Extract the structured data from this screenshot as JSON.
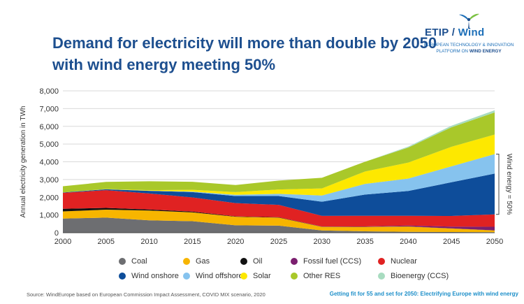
{
  "header": {
    "title": "Demand for electricity will more than double by 2050 with wind energy meeting 50%"
  },
  "logo": {
    "name_part1": "ETIP",
    "name_part2": "Wind",
    "tagline_line1": "European Technology & Innovation",
    "tagline_line2_prefix": "Platform on ",
    "tagline_line2_bold": "Wind Energy",
    "icon": "wind-turbine-icon"
  },
  "chart_data": {
    "type": "area",
    "stacked": true,
    "ylabel": "Annual electricity generation in TWh",
    "xlabel": "",
    "x": [
      2000,
      2005,
      2010,
      2015,
      2020,
      2025,
      2030,
      2035,
      2040,
      2045,
      2050
    ],
    "ylim": [
      0,
      8000
    ],
    "yticks": [
      "0",
      "1,000",
      "2,000",
      "3,000",
      "4,000",
      "5,000",
      "6,000",
      "7,000",
      "8,000"
    ],
    "grid": true,
    "bracket_label": "Wind energy = 50%",
    "series": [
      {
        "name": "Coal",
        "color": "#6d6e71",
        "values": [
          800,
          850,
          700,
          650,
          420,
          400,
          130,
          80,
          50,
          40,
          30
        ]
      },
      {
        "name": "Gas",
        "color": "#f7b500",
        "values": [
          400,
          450,
          550,
          500,
          480,
          450,
          200,
          250,
          300,
          200,
          100
        ]
      },
      {
        "name": "Oil",
        "color": "#111111",
        "values": [
          150,
          100,
          60,
          40,
          20,
          20,
          10,
          5,
          5,
          5,
          5
        ]
      },
      {
        "name": "Fossil fuel (CCS)",
        "color": "#7b1f6f",
        "values": [
          0,
          0,
          0,
          0,
          0,
          0,
          10,
          20,
          50,
          100,
          200
        ]
      },
      {
        "name": "Nuclear",
        "color": "#e02222",
        "values": [
          900,
          1000,
          900,
          800,
          750,
          700,
          600,
          600,
          550,
          600,
          700
        ]
      },
      {
        "name": "Wind onshore",
        "color": "#0e4d9a",
        "values": [
          20,
          50,
          150,
          300,
          400,
          500,
          800,
          1200,
          1400,
          1900,
          2300
        ]
      },
      {
        "name": "Wind offshore",
        "color": "#86c3ee",
        "values": [
          0,
          5,
          10,
          30,
          70,
          120,
          350,
          600,
          700,
          900,
          1100
        ]
      },
      {
        "name": "Solar",
        "color": "#fde800",
        "values": [
          0,
          10,
          30,
          100,
          150,
          250,
          400,
          700,
          900,
          1100,
          1100
        ]
      },
      {
        "name": "Other RES",
        "color": "#a9c82a",
        "values": [
          350,
          400,
          500,
          450,
          400,
          500,
          600,
          550,
          850,
          1100,
          1250
        ]
      },
      {
        "name": "Bioenergy (CCS)",
        "color": "#a8dcc0",
        "values": [
          0,
          0,
          0,
          0,
          0,
          0,
          0,
          0,
          50,
          90,
          120
        ]
      }
    ]
  },
  "source": "Source: WindEurope based on European Commission Impact Assessment, COVID MIX scenario, 2020",
  "footer_right": "Getting fit for 55 and set for 2050: Electrifying Europe with wind energy"
}
